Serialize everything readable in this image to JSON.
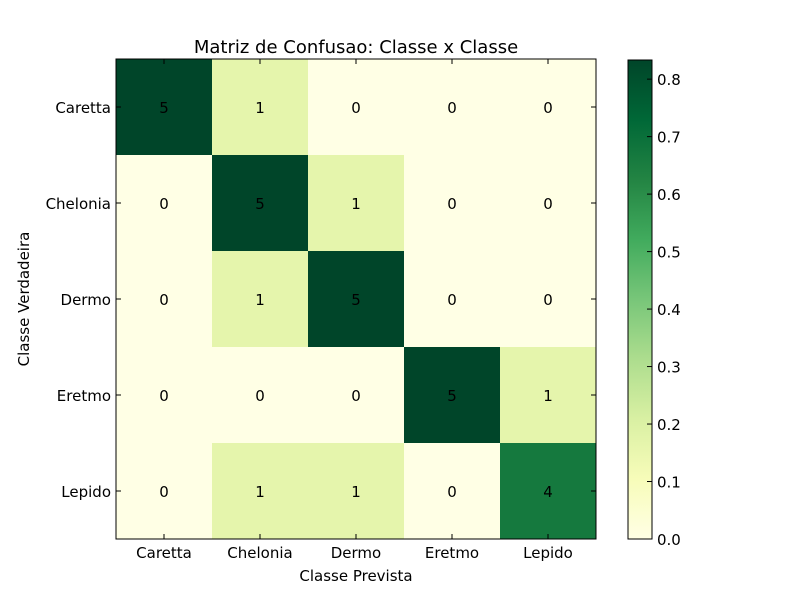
{
  "chart_data": {
    "type": "heatmap",
    "title": "Matriz de Confusao: Classe x Classe",
    "xlabel": "Classe Prevista",
    "ylabel": "Classe Verdadeira",
    "x_categories": [
      "Caretta",
      "Chelonia",
      "Dermo",
      "Eretmo",
      "Lepido"
    ],
    "y_categories": [
      "Caretta",
      "Chelonia",
      "Dermo",
      "Eretmo",
      "Lepido"
    ],
    "values": [
      [
        5,
        1,
        0,
        0,
        0
      ],
      [
        0,
        5,
        1,
        0,
        0
      ],
      [
        0,
        1,
        5,
        0,
        0
      ],
      [
        0,
        0,
        0,
        5,
        1
      ],
      [
        0,
        1,
        1,
        0,
        4
      ]
    ],
    "normalized": [
      [
        0.8333,
        0.1667,
        0.0,
        0.0,
        0.0
      ],
      [
        0.0,
        0.8333,
        0.1667,
        0.0,
        0.0
      ],
      [
        0.0,
        0.1667,
        0.8333,
        0.0,
        0.0
      ],
      [
        0.0,
        0.0,
        0.0,
        0.8333,
        0.1667
      ],
      [
        0.0,
        0.1667,
        0.1667,
        0.0,
        0.6667
      ]
    ],
    "colormap": "YlGn",
    "colorbar": {
      "range": [
        0.0,
        0.8333
      ],
      "ticks": [
        "0.0",
        "0.1",
        "0.2",
        "0.3",
        "0.4",
        "0.5",
        "0.6",
        "0.7",
        "0.8"
      ]
    }
  }
}
